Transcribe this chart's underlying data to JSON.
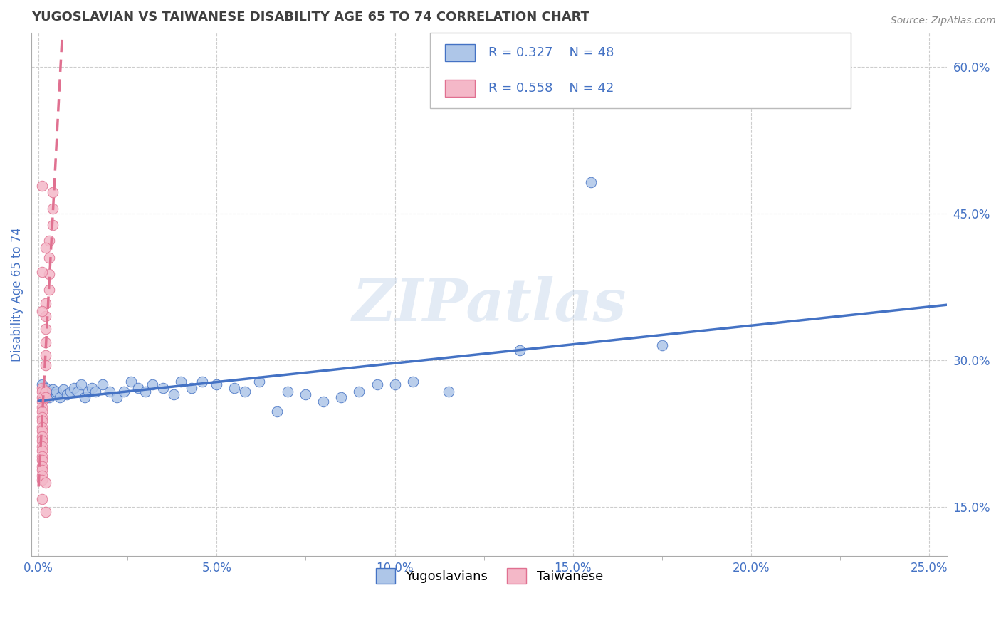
{
  "title": "YUGOSLAVIAN VS TAIWANESE DISABILITY AGE 65 TO 74 CORRELATION CHART",
  "source": "Source: ZipAtlas.com",
  "ylabel": "Disability Age 65 to 74",
  "xlim": [
    -0.002,
    0.255
  ],
  "ylim": [
    0.1,
    0.635
  ],
  "yticks": [
    0.15,
    0.3,
    0.45,
    0.6
  ],
  "ytick_labels": [
    "15.0%",
    "30.0%",
    "45.0%",
    "60.0%"
  ],
  "xticks": [
    0.0,
    0.05,
    0.1,
    0.15,
    0.2,
    0.25
  ],
  "xtick_labels": [
    "0.0%",
    "5.0%",
    "10.0%",
    "15.0%",
    "20.0%",
    "25.0%"
  ],
  "legend_items": [
    {
      "label": "Yugoslavians",
      "R": "0.327",
      "N": "48",
      "color": "#aec6e8",
      "line_color": "#4472c4"
    },
    {
      "label": "Taiwanese",
      "R": "0.558",
      "N": "42",
      "color": "#f4b8c8",
      "line_color": "#e07090"
    }
  ],
  "watermark": "ZIPatlas",
  "background_color": "#ffffff",
  "grid_color": "#c8c8c8",
  "title_color": "#404040",
  "axis_label_color": "#4472c4",
  "yugoslav_points": [
    [
      0.001,
      0.275
    ],
    [
      0.002,
      0.272
    ],
    [
      0.003,
      0.268
    ],
    [
      0.003,
      0.262
    ],
    [
      0.004,
      0.27
    ],
    [
      0.005,
      0.265
    ],
    [
      0.005,
      0.268
    ],
    [
      0.006,
      0.262
    ],
    [
      0.007,
      0.27
    ],
    [
      0.008,
      0.265
    ],
    [
      0.009,
      0.268
    ],
    [
      0.01,
      0.272
    ],
    [
      0.011,
      0.268
    ],
    [
      0.012,
      0.275
    ],
    [
      0.013,
      0.262
    ],
    [
      0.014,
      0.268
    ],
    [
      0.015,
      0.272
    ],
    [
      0.016,
      0.268
    ],
    [
      0.018,
      0.275
    ],
    [
      0.02,
      0.268
    ],
    [
      0.022,
      0.262
    ],
    [
      0.024,
      0.268
    ],
    [
      0.026,
      0.278
    ],
    [
      0.028,
      0.272
    ],
    [
      0.03,
      0.268
    ],
    [
      0.032,
      0.275
    ],
    [
      0.035,
      0.272
    ],
    [
      0.038,
      0.265
    ],
    [
      0.04,
      0.278
    ],
    [
      0.043,
      0.272
    ],
    [
      0.046,
      0.278
    ],
    [
      0.05,
      0.275
    ],
    [
      0.055,
      0.272
    ],
    [
      0.058,
      0.268
    ],
    [
      0.062,
      0.278
    ],
    [
      0.067,
      0.248
    ],
    [
      0.07,
      0.268
    ],
    [
      0.075,
      0.265
    ],
    [
      0.08,
      0.258
    ],
    [
      0.085,
      0.262
    ],
    [
      0.09,
      0.268
    ],
    [
      0.095,
      0.275
    ],
    [
      0.1,
      0.275
    ],
    [
      0.105,
      0.278
    ],
    [
      0.115,
      0.268
    ],
    [
      0.135,
      0.31
    ],
    [
      0.155,
      0.482
    ],
    [
      0.175,
      0.315
    ]
  ],
  "taiwanese_points": [
    [
      0.001,
      0.272
    ],
    [
      0.001,
      0.268
    ],
    [
      0.001,
      0.262
    ],
    [
      0.001,
      0.258
    ],
    [
      0.001,
      0.252
    ],
    [
      0.001,
      0.248
    ],
    [
      0.001,
      0.242
    ],
    [
      0.001,
      0.238
    ],
    [
      0.001,
      0.232
    ],
    [
      0.001,
      0.228
    ],
    [
      0.001,
      0.222
    ],
    [
      0.001,
      0.218
    ],
    [
      0.001,
      0.212
    ],
    [
      0.001,
      0.208
    ],
    [
      0.001,
      0.202
    ],
    [
      0.001,
      0.198
    ],
    [
      0.001,
      0.192
    ],
    [
      0.001,
      0.188
    ],
    [
      0.001,
      0.182
    ],
    [
      0.001,
      0.178
    ],
    [
      0.002,
      0.268
    ],
    [
      0.002,
      0.262
    ],
    [
      0.002,
      0.295
    ],
    [
      0.002,
      0.305
    ],
    [
      0.002,
      0.318
    ],
    [
      0.002,
      0.332
    ],
    [
      0.002,
      0.345
    ],
    [
      0.002,
      0.358
    ],
    [
      0.003,
      0.372
    ],
    [
      0.003,
      0.388
    ],
    [
      0.003,
      0.405
    ],
    [
      0.003,
      0.422
    ],
    [
      0.004,
      0.438
    ],
    [
      0.004,
      0.455
    ],
    [
      0.004,
      0.472
    ],
    [
      0.001,
      0.478
    ],
    [
      0.001,
      0.158
    ],
    [
      0.002,
      0.145
    ],
    [
      0.001,
      0.39
    ],
    [
      0.002,
      0.415
    ],
    [
      0.001,
      0.35
    ],
    [
      0.002,
      0.175
    ]
  ]
}
